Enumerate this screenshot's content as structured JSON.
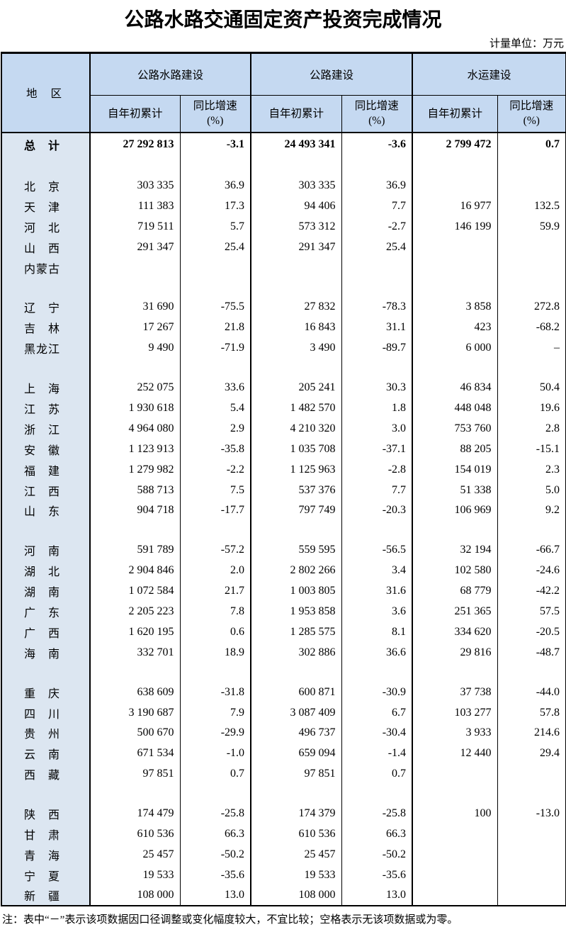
{
  "page": {
    "title": "公路水路交通固定资产投资完成情况",
    "unit_note": "计量单位：万元",
    "footnote": "注：表中“－”表示该项数据因口径调整或变化幅度较大，不宜比较；空格表示无该项数据或为零。"
  },
  "colors": {
    "header_bg": "#c5d9f1",
    "region_col_bg": "#dce6f1",
    "border": "#000000"
  },
  "table": {
    "region_header": "地区",
    "groups": [
      {
        "label": "公路水路建设"
      },
      {
        "label": "公路建设"
      },
      {
        "label": "水运建设"
      }
    ],
    "cum_label": "自年初累计",
    "growth_label": "同比增速",
    "growth_unit": "(%)",
    "rows": [
      {
        "type": "total",
        "region": "总计",
        "values": [
          "27 292 813",
          "-3.1",
          "24 493 341",
          "-3.6",
          "2 799 472",
          "0.7"
        ]
      },
      {
        "type": "spacer",
        "region": "",
        "values": [
          "",
          "",
          "",
          "",
          "",
          ""
        ]
      },
      {
        "type": "data",
        "region": "北京",
        "values": [
          "303 335",
          "36.9",
          "303 335",
          "36.9",
          "",
          ""
        ]
      },
      {
        "type": "data",
        "region": "天津",
        "values": [
          "111 383",
          "17.3",
          "94 406",
          "7.7",
          "16 977",
          "132.5"
        ]
      },
      {
        "type": "data",
        "region": "河北",
        "values": [
          "719 511",
          "5.7",
          "573 312",
          "-2.7",
          "146 199",
          "59.9"
        ]
      },
      {
        "type": "data",
        "region": "山西",
        "values": [
          "291 347",
          "25.4",
          "291 347",
          "25.4",
          "",
          ""
        ]
      },
      {
        "type": "data",
        "region": "内蒙古",
        "values": [
          "",
          "",
          "",
          "",
          "",
          ""
        ]
      },
      {
        "type": "spacer",
        "region": "",
        "values": [
          "",
          "",
          "",
          "",
          "",
          ""
        ]
      },
      {
        "type": "data",
        "region": "辽宁",
        "values": [
          "31 690",
          "-75.5",
          "27 832",
          "-78.3",
          "3 858",
          "272.8"
        ]
      },
      {
        "type": "data",
        "region": "吉林",
        "values": [
          "17 267",
          "21.8",
          "16 843",
          "31.1",
          "423",
          "-68.2"
        ]
      },
      {
        "type": "data",
        "region": "黑龙江",
        "values": [
          "9 490",
          "-71.9",
          "3 490",
          "-89.7",
          "6 000",
          "–"
        ]
      },
      {
        "type": "spacer",
        "region": "",
        "values": [
          "",
          "",
          "",
          "",
          "",
          ""
        ]
      },
      {
        "type": "data",
        "region": "上海",
        "values": [
          "252 075",
          "33.6",
          "205 241",
          "30.3",
          "46 834",
          "50.4"
        ]
      },
      {
        "type": "data",
        "region": "江苏",
        "values": [
          "1 930 618",
          "5.4",
          "1 482 570",
          "1.8",
          "448 048",
          "19.6"
        ]
      },
      {
        "type": "data",
        "region": "浙江",
        "values": [
          "4 964 080",
          "2.9",
          "4 210 320",
          "3.0",
          "753 760",
          "2.8"
        ]
      },
      {
        "type": "data",
        "region": "安徽",
        "values": [
          "1 123 913",
          "-35.8",
          "1 035 708",
          "-37.1",
          "88 205",
          "-15.1"
        ]
      },
      {
        "type": "data",
        "region": "福建",
        "values": [
          "1 279 982",
          "-2.2",
          "1 125 963",
          "-2.8",
          "154 019",
          "2.3"
        ]
      },
      {
        "type": "data",
        "region": "江西",
        "values": [
          "588 713",
          "7.5",
          "537 376",
          "7.7",
          "51 338",
          "5.0"
        ]
      },
      {
        "type": "data",
        "region": "山东",
        "values": [
          "904 718",
          "-17.7",
          "797 749",
          "-20.3",
          "106 969",
          "9.2"
        ]
      },
      {
        "type": "spacer",
        "region": "",
        "values": [
          "",
          "",
          "",
          "",
          "",
          ""
        ]
      },
      {
        "type": "data",
        "region": "河南",
        "values": [
          "591 789",
          "-57.2",
          "559 595",
          "-56.5",
          "32 194",
          "-66.7"
        ]
      },
      {
        "type": "data",
        "region": "湖北",
        "values": [
          "2 904 846",
          "2.0",
          "2 802 266",
          "3.4",
          "102 580",
          "-24.6"
        ]
      },
      {
        "type": "data",
        "region": "湖南",
        "values": [
          "1 072 584",
          "21.7",
          "1 003 805",
          "31.6",
          "68 779",
          "-42.2"
        ]
      },
      {
        "type": "data",
        "region": "广东",
        "values": [
          "2 205 223",
          "7.8",
          "1 953 858",
          "3.6",
          "251 365",
          "57.5"
        ]
      },
      {
        "type": "data",
        "region": "广西",
        "values": [
          "1 620 195",
          "0.6",
          "1 285 575",
          "8.1",
          "334 620",
          "-20.5"
        ]
      },
      {
        "type": "data",
        "region": "海南",
        "values": [
          "332 701",
          "18.9",
          "302 886",
          "36.6",
          "29 816",
          "-48.7"
        ]
      },
      {
        "type": "spacer",
        "region": "",
        "values": [
          "",
          "",
          "",
          "",
          "",
          ""
        ]
      },
      {
        "type": "data",
        "region": "重庆",
        "values": [
          "638 609",
          "-31.8",
          "600 871",
          "-30.9",
          "37 738",
          "-44.0"
        ]
      },
      {
        "type": "data",
        "region": "四川",
        "values": [
          "3 190 687",
          "7.9",
          "3 087 409",
          "6.7",
          "103 277",
          "57.8"
        ]
      },
      {
        "type": "data",
        "region": "贵州",
        "values": [
          "500 670",
          "-29.9",
          "496 737",
          "-30.4",
          "3 933",
          "214.6"
        ]
      },
      {
        "type": "data",
        "region": "云南",
        "values": [
          "671 534",
          "-1.0",
          "659 094",
          "-1.4",
          "12 440",
          "29.4"
        ]
      },
      {
        "type": "data",
        "region": "西藏",
        "values": [
          "97 851",
          "0.7",
          "97 851",
          "0.7",
          "",
          ""
        ]
      },
      {
        "type": "spacer",
        "region": "",
        "values": [
          "",
          "",
          "",
          "",
          "",
          ""
        ]
      },
      {
        "type": "data",
        "region": "陕西",
        "values": [
          "174 479",
          "-25.8",
          "174 379",
          "-25.8",
          "100",
          "-13.0"
        ]
      },
      {
        "type": "data",
        "region": "甘肃",
        "values": [
          "610 536",
          "66.3",
          "610 536",
          "66.3",
          "",
          ""
        ]
      },
      {
        "type": "data",
        "region": "青海",
        "values": [
          "25 457",
          "-50.2",
          "25 457",
          "-50.2",
          "",
          ""
        ]
      },
      {
        "type": "data",
        "region": "宁夏",
        "values": [
          "19 533",
          "-35.6",
          "19 533",
          "-35.6",
          "",
          ""
        ]
      },
      {
        "type": "data",
        "region": "新疆",
        "values": [
          "108 000",
          "13.0",
          "108 000",
          "13.0",
          "",
          ""
        ]
      }
    ]
  }
}
